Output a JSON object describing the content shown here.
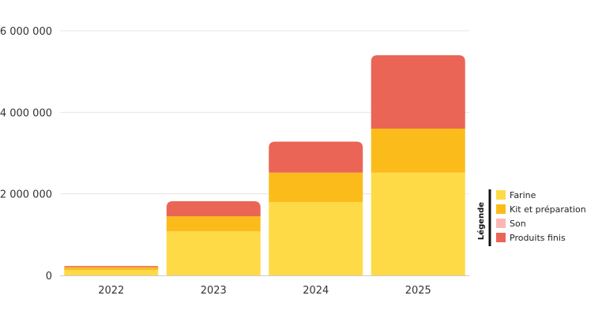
{
  "chart_data": {
    "type": "bar",
    "stacked": true,
    "categories": [
      "2022",
      "2023",
      "2024",
      "2025"
    ],
    "series": [
      {
        "name": "Farine",
        "color": "#FFDA47",
        "values": [
          130000,
          1080000,
          1800000,
          2520000
        ]
      },
      {
        "name": "Kit et préparation",
        "color": "#FBBC1B",
        "values": [
          70000,
          370000,
          720000,
          1080000
        ]
      },
      {
        "name": "Son",
        "color": "#F9B8B5",
        "values": [
          0,
          0,
          0,
          0
        ]
      },
      {
        "name": "Produits finis",
        "color": "#EA6556",
        "values": [
          30000,
          370000,
          760000,
          1800000
        ]
      }
    ],
    "y_ticks": [
      "0",
      "2 000 000",
      "4 000 000",
      "6 000 000"
    ],
    "y_tick_values": [
      0,
      2000000,
      4000000,
      6000000
    ],
    "ylim": [
      0,
      6000000
    ],
    "grid": true,
    "legend": {
      "title": "Légende",
      "position": "right"
    }
  }
}
